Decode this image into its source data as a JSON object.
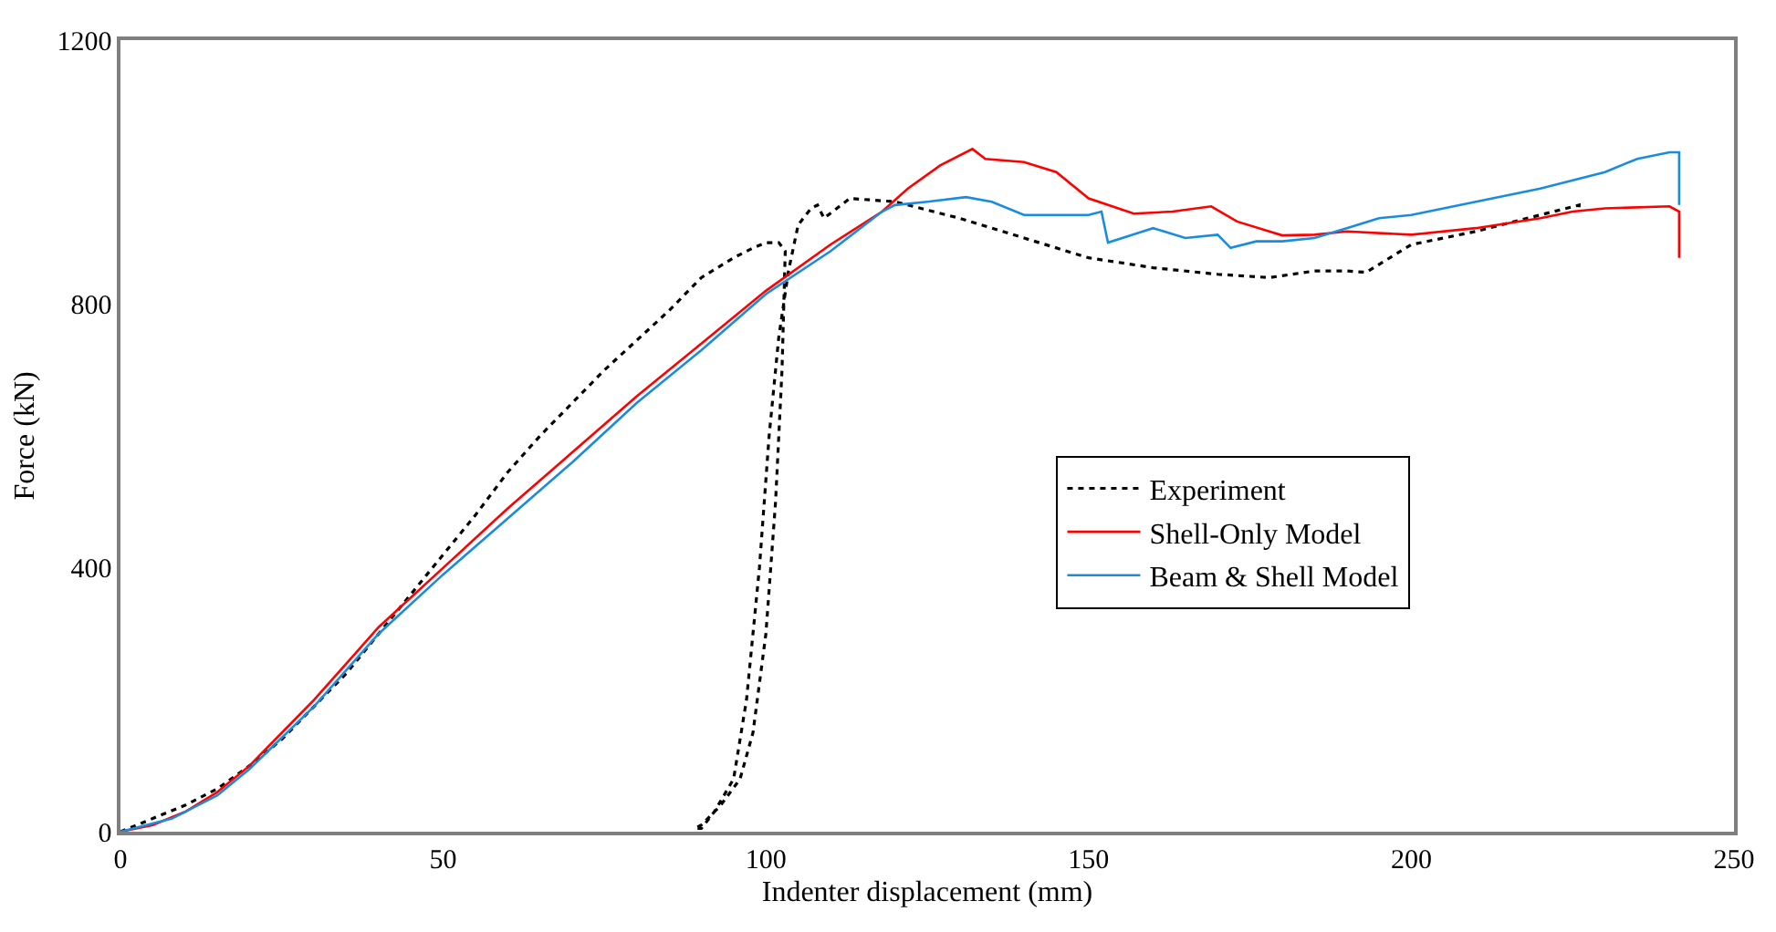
{
  "chart_data": {
    "type": "line",
    "xlabel": "Indenter displacement (mm)",
    "ylabel": "Force (kN)",
    "xlim": [
      0,
      250
    ],
    "xticks": [
      0,
      50,
      100,
      150,
      200,
      250
    ],
    "ylim": [
      0,
      1200
    ],
    "yticks": [
      0,
      400,
      800,
      1200
    ],
    "legend": "right",
    "marker": "none",
    "series": [
      {
        "name": "Experiment",
        "color": "#000000",
        "line_style": "dotted",
        "x": [
          0,
          5,
          10,
          15,
          20,
          25,
          30,
          35,
          40,
          45,
          50,
          55,
          60,
          65,
          70,
          75,
          80,
          85,
          90,
          95,
          98,
          100,
          102,
          103,
          102.5,
          101.5,
          100,
          98,
          96,
          93,
          90,
          89,
          90,
          92,
          95,
          97,
          99,
          100.5,
          102,
          103.5,
          105,
          107,
          108,
          109,
          111,
          113,
          120,
          130,
          140,
          150,
          160,
          170,
          178,
          185,
          190,
          193,
          200,
          210,
          220,
          226,
          226
        ],
        "values": [
          0,
          20,
          40,
          65,
          100,
          140,
          190,
          240,
          300,
          360,
          420,
          480,
          545,
          600,
          650,
          700,
          745,
          790,
          840,
          870,
          885,
          893,
          893,
          880,
          700,
          500,
          300,
          150,
          80,
          40,
          10,
          5,
          5,
          30,
          80,
          200,
          400,
          600,
          750,
          850,
          920,
          945,
          950,
          930,
          945,
          960,
          955,
          930,
          900,
          870,
          855,
          845,
          840,
          850,
          850,
          848,
          890,
          910,
          935,
          950,
          940
        ]
      },
      {
        "name": "Shell-Only Model",
        "color": "#ff0000",
        "line_style": "solid",
        "x": [
          0,
          5,
          10,
          15,
          20,
          25,
          30,
          35,
          40,
          50,
          60,
          70,
          80,
          90,
          100,
          110,
          118,
          122,
          127,
          132,
          134,
          140,
          145,
          150,
          157,
          163,
          169,
          173,
          180,
          185,
          190,
          200,
          210,
          220,
          225,
          230,
          240,
          241.5,
          241.5
        ],
        "values": [
          0,
          10,
          30,
          60,
          100,
          150,
          200,
          255,
          310,
          400,
          490,
          575,
          660,
          740,
          820,
          890,
          940,
          975,
          1010,
          1035,
          1020,
          1015,
          1000,
          960,
          937,
          940,
          948,
          925,
          904,
          905,
          910,
          905,
          915,
          930,
          940,
          945,
          948,
          940,
          870
        ]
      },
      {
        "name": "Beam & Shell Model",
        "color": "#1a8ce0",
        "line_style": "solid",
        "x": [
          0,
          8,
          15,
          20,
          30,
          40,
          50,
          60,
          70,
          80,
          90,
          100,
          110,
          118,
          120,
          125,
          131,
          135,
          140,
          145,
          150,
          152,
          153,
          160,
          165,
          170,
          172,
          176,
          180,
          185,
          190,
          195,
          200,
          210,
          220,
          230,
          235,
          240,
          241.5,
          241.5
        ],
        "values": [
          0,
          20,
          55,
          95,
          190,
          300,
          390,
          475,
          560,
          650,
          730,
          815,
          880,
          940,
          950,
          955,
          962,
          955,
          935,
          935,
          935,
          940,
          893,
          915,
          900,
          905,
          885,
          895,
          895,
          900,
          915,
          930,
          935,
          955,
          975,
          1000,
          1020,
          1030,
          1030,
          950
        ]
      }
    ]
  }
}
